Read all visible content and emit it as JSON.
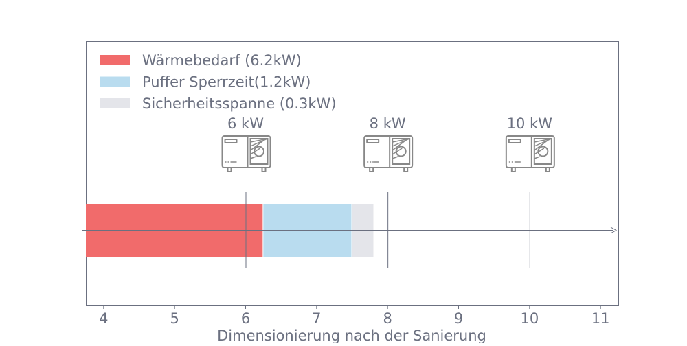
{
  "chart_data": {
    "type": "bar",
    "orientation": "horizontal-stacked",
    "title": "",
    "xlabel": "Dimensionierung nach der Sanierung",
    "ylabel": "",
    "xlim": [
      3.75,
      11.25
    ],
    "xticks": [
      4,
      5,
      6,
      7,
      8,
      9,
      10,
      11
    ],
    "grid": false,
    "legend_position": "top-left",
    "series": [
      {
        "name": "Wärmebedarf (6.2kW)",
        "start": 3.75,
        "end": 6.25,
        "color": "#f16b6b"
      },
      {
        "name": "Puffer Sperrzeit(1.2kW)",
        "start": 6.25,
        "end": 7.5,
        "color": "#b9dcef"
      },
      {
        "name": "Sicherheitsspanne (0.3kW)",
        "start": 7.5,
        "end": 7.8,
        "color": "#e4e5ea"
      }
    ],
    "markers": [
      {
        "x": 6,
        "label": "6 kW",
        "icon": "heat-pump-icon"
      },
      {
        "x": 8,
        "label": "8 kW",
        "icon": "heat-pump-icon"
      },
      {
        "x": 10,
        "label": "10 kW",
        "icon": "heat-pump-icon"
      }
    ],
    "colors": {
      "axis": "#6b7080",
      "text": "#6b7080",
      "icon": "#888888"
    }
  }
}
